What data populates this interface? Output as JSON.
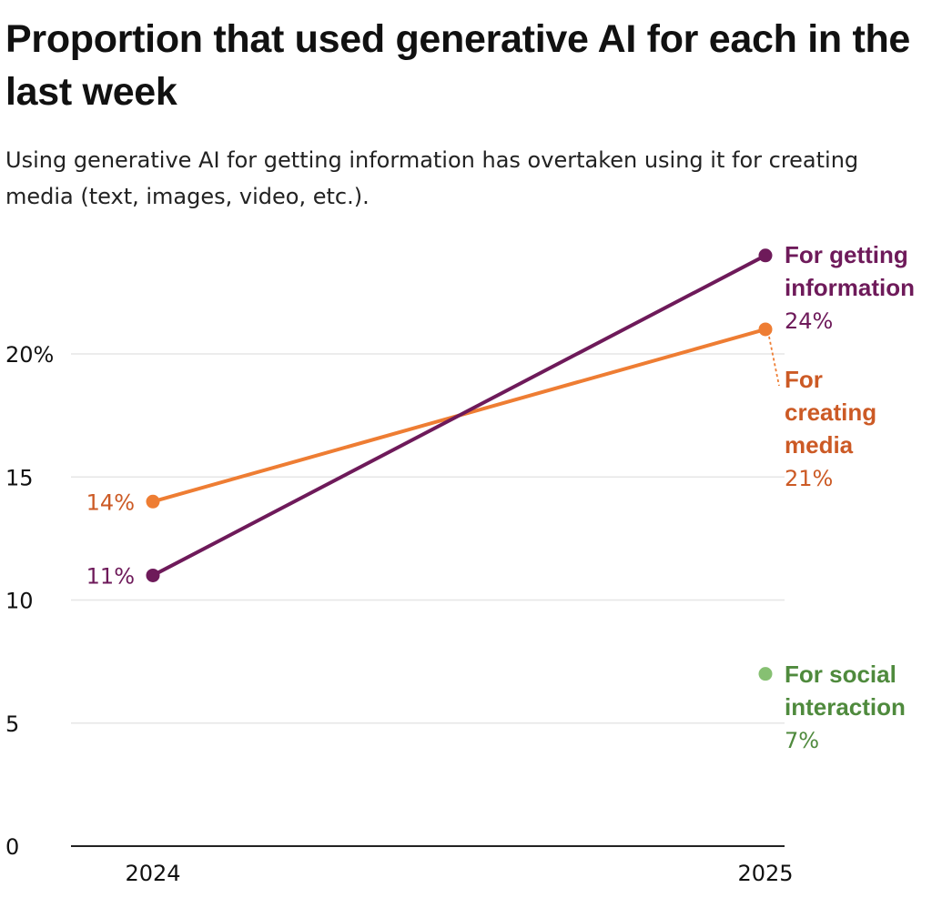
{
  "title": "Proportion that used generative AI for each in the last week",
  "subtitle": "Using generative AI for getting information has overtaken using it for creating media (text, images, video, etc.).",
  "colors": {
    "information": "#6e1a5a",
    "media": "#ee7d33",
    "social": "#86c072",
    "media_text": "#cc5a25",
    "social_text": "#4f8a3d",
    "grid": "#e6e6e6"
  },
  "chart_data": {
    "type": "line",
    "title": "Proportion that used generative AI for each in the last week",
    "xlabel": "",
    "ylabel": "",
    "x": [
      "2024",
      "2025"
    ],
    "ylim": [
      0,
      24
    ],
    "yticks": [
      0,
      5,
      10,
      15,
      20
    ],
    "ytick_labels": [
      "0",
      "5",
      "10",
      "15",
      "20%"
    ],
    "series": [
      {
        "key": "information",
        "name_lines": [
          "For getting",
          "information"
        ],
        "values": [
          11,
          24
        ],
        "labels": [
          "11%",
          "24%"
        ],
        "color": "#6e1a5a",
        "text_color": "#6e1a5a"
      },
      {
        "key": "media",
        "name_lines": [
          "For",
          "creating",
          "media"
        ],
        "values": [
          14,
          21
        ],
        "labels": [
          "14%",
          "21%"
        ],
        "color": "#ee7d33",
        "text_color": "#cc5a25"
      },
      {
        "key": "social",
        "name_lines": [
          "For social",
          "interaction"
        ],
        "values": [
          null,
          7
        ],
        "labels": [
          null,
          "7%"
        ],
        "color": "#86c072",
        "text_color": "#4f8a3d"
      }
    ]
  }
}
